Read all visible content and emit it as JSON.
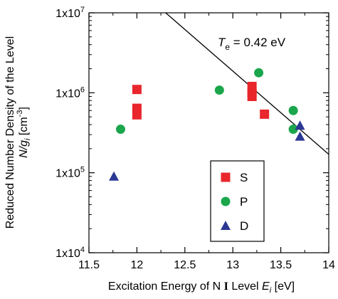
{
  "chart_data": {
    "type": "scatter",
    "xlabel": {
      "main": "Excitation Energy of N ",
      "roman": "I",
      "mid": " Level ",
      "var": "E",
      "sub": "i",
      "unit": " [eV]"
    },
    "ylabel": {
      "line1": "Reduced Number Density of the Level",
      "var": "N/g",
      "sub": "i",
      "unit": " [cm",
      "sup": "-3",
      "close": "]"
    },
    "xlim": [
      11.5,
      14.0
    ],
    "ylim_log10": [
      4,
      7
    ],
    "x_ticks": [
      11.5,
      12,
      12.5,
      13,
      13.5,
      14
    ],
    "x_tick_labels": [
      "11.5",
      "12",
      "12.5",
      "13",
      "13.5",
      "14"
    ],
    "y_ticks_log10": [
      4,
      5,
      6,
      7
    ],
    "y_tick_labels": [
      {
        "base": "1x10",
        "exp": "4"
      },
      {
        "base": "1x10",
        "exp": "5"
      },
      {
        "base": "1x10",
        "exp": "6"
      },
      {
        "base": "1x10",
        "exp": "7"
      }
    ],
    "legend_position": "bottom-center",
    "series": [
      {
        "name": "S",
        "marker": "square",
        "color": "#e8262b",
        "points": [
          [
            12.0,
            1100000
          ],
          [
            12.0,
            640000
          ],
          [
            12.0,
            530000
          ],
          [
            13.2,
            1200000
          ],
          [
            13.2,
            1000000
          ],
          [
            13.2,
            900000
          ],
          [
            13.33,
            540000
          ]
        ]
      },
      {
        "name": "P",
        "marker": "circle",
        "color": "#1aa64b",
        "points": [
          [
            11.83,
            350000
          ],
          [
            12.86,
            1080000
          ],
          [
            13.27,
            1780000
          ],
          [
            13.63,
            600000
          ],
          [
            13.63,
            350000
          ]
        ]
      },
      {
        "name": "D",
        "marker": "triangle",
        "color": "#2b3894",
        "points": [
          [
            11.76,
            90000
          ],
          [
            13.7,
            390000
          ],
          [
            13.7,
            285000
          ]
        ]
      }
    ],
    "fit_line": {
      "points": [
        [
          12.3,
          10000000
        ],
        [
          14.0,
          170000
        ]
      ],
      "label_var": "T",
      "label_sub": "e",
      "label_rest": " = 0.42 eV"
    }
  }
}
